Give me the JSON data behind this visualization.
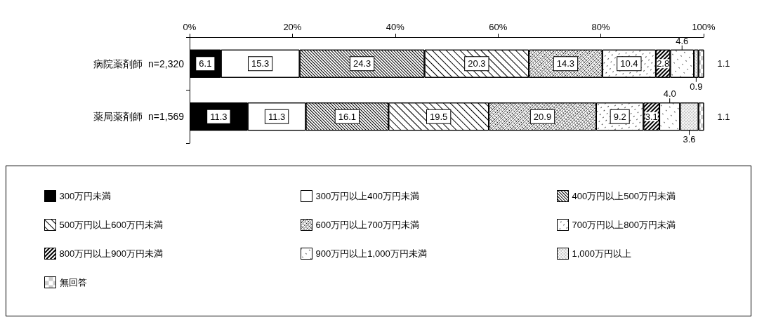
{
  "chart_data": {
    "type": "bar",
    "orientation": "horizontal",
    "stacked": true,
    "categories": [
      "病院薬剤師  n=2,320",
      "薬局薬剤師  n=1,569"
    ],
    "series": [
      {
        "name": "300万円未満",
        "color": "#000000",
        "values": [
          6.1,
          11.3
        ]
      },
      {
        "name": "300万円以上400万円未満",
        "color": "#ffffff",
        "values": [
          15.3,
          11.3
        ]
      },
      {
        "name": "400万円以上500万円未満",
        "color": "#ffffff",
        "values": [
          24.3,
          16.1
        ]
      },
      {
        "name": "500万円以上600万円未満",
        "color": "#ffffff",
        "values": [
          20.3,
          19.5
        ]
      },
      {
        "name": "600万円以上700万円未満",
        "color": "#ffffff",
        "values": [
          14.3,
          20.9
        ]
      },
      {
        "name": "700万円以上800万円未満",
        "color": "#ffffff",
        "values": [
          10.4,
          9.2
        ]
      },
      {
        "name": "800万円以上900万円未満",
        "color": "#ffffff",
        "values": [
          2.8,
          3.1
        ]
      },
      {
        "name": "900万円以上1,000万円未満",
        "color": "#ffffff",
        "values": [
          4.6,
          4.0
        ],
        "value_labels": [
          "4.6",
          "4.0"
        ]
      },
      {
        "name": "1,000万円以上",
        "color": "#ffffff",
        "values": [
          0.9,
          3.6
        ]
      },
      {
        "name": "無回答",
        "color": "#ffffff",
        "values": [
          1.1,
          1.1
        ]
      }
    ],
    "xlim": [
      0,
      100
    ],
    "xticks": [
      {
        "value": 0,
        "label": "0%"
      },
      {
        "value": 20,
        "label": "20%"
      },
      {
        "value": 40,
        "label": "40%"
      },
      {
        "value": 60,
        "label": "60%"
      },
      {
        "value": 80,
        "label": "80%"
      },
      {
        "value": 100,
        "label": "100%"
      }
    ],
    "data_labels": true,
    "grid": false,
    "legend": "bottom"
  }
}
